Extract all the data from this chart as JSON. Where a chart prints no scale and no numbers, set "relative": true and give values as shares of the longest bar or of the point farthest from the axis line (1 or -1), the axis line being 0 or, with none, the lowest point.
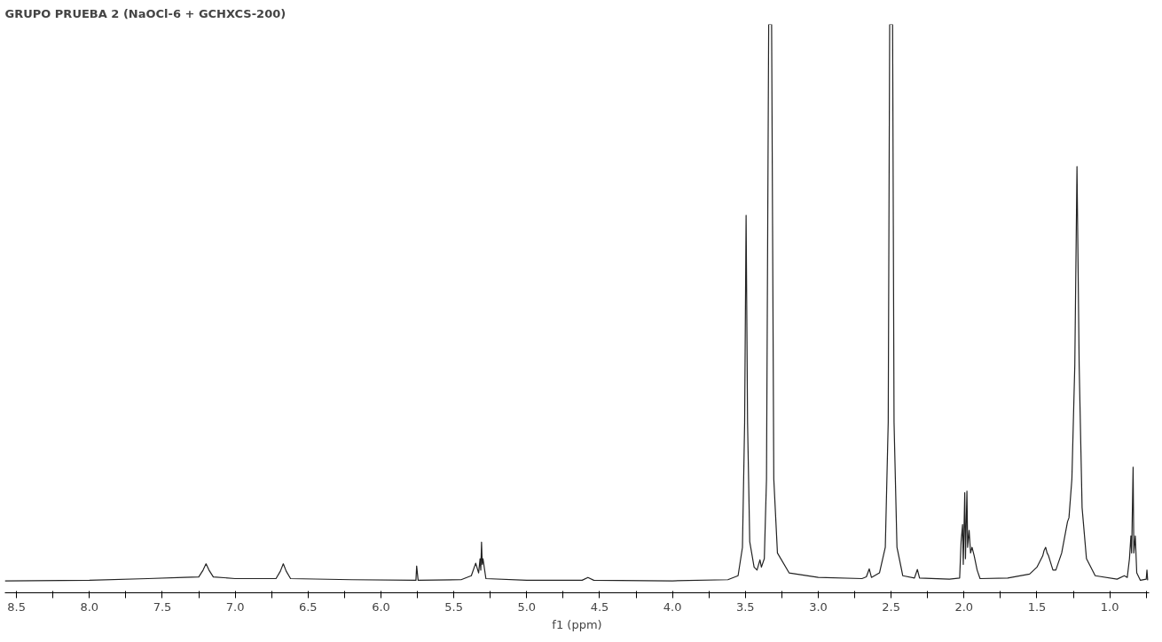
{
  "chart_data": {
    "type": "line",
    "title": "GRUPO PRUEBA 2 (NaOCl-6 + GCHXCS-200)",
    "xlabel": "f1 (ppm)",
    "relative": true,
    "grid": false,
    "marker": "none",
    "line_style": "solid",
    "xlim": [
      8.58,
      0.73
    ],
    "xticks": [
      {
        "value": 8.5,
        "label": "8.5"
      },
      {
        "value": 8.25,
        "label": null
      },
      {
        "value": 8.0,
        "label": "8.0"
      },
      {
        "value": 7.75,
        "label": null
      },
      {
        "value": 7.5,
        "label": "7.5"
      },
      {
        "value": 7.25,
        "label": null
      },
      {
        "value": 7.0,
        "label": "7.0"
      },
      {
        "value": 6.75,
        "label": null
      },
      {
        "value": 6.5,
        "label": "6.5"
      },
      {
        "value": 6.25,
        "label": null
      },
      {
        "value": 6.0,
        "label": "6.0"
      },
      {
        "value": 5.75,
        "label": null
      },
      {
        "value": 5.5,
        "label": "5.5"
      },
      {
        "value": 5.25,
        "label": null
      },
      {
        "value": 5.0,
        "label": "5.0"
      },
      {
        "value": 4.75,
        "label": null
      },
      {
        "value": 4.5,
        "label": "4.5"
      },
      {
        "value": 4.25,
        "label": null
      },
      {
        "value": 4.0,
        "label": "4.0"
      },
      {
        "value": 3.75,
        "label": null
      },
      {
        "value": 3.5,
        "label": "3.5"
      },
      {
        "value": 3.25,
        "label": null
      },
      {
        "value": 3.0,
        "label": "3.0"
      },
      {
        "value": 2.75,
        "label": null
      },
      {
        "value": 2.5,
        "label": "2.5"
      },
      {
        "value": 2.25,
        "label": null
      },
      {
        "value": 2.0,
        "label": "2.0"
      },
      {
        "value": 1.75,
        "label": null
      },
      {
        "value": 1.5,
        "label": "1.5"
      },
      {
        "value": 1.25,
        "label": null
      },
      {
        "value": 1.0,
        "label": "1.0"
      },
      {
        "value": 0.75,
        "label": null
      }
    ],
    "series": [
      {
        "color": "#222222",
        "x": [
          8.58,
          8.0,
          7.6,
          7.35,
          7.25,
          7.22,
          7.2,
          7.18,
          7.15,
          7.0,
          6.72,
          6.69,
          6.67,
          6.65,
          6.62,
          6.2,
          5.76,
          5.755,
          5.745,
          5.45,
          5.38,
          5.35,
          5.33,
          5.32,
          5.315,
          5.31,
          5.305,
          5.3,
          5.28,
          5.0,
          4.62,
          4.58,
          4.54,
          4.0,
          3.62,
          3.55,
          3.52,
          3.505,
          3.495,
          3.485,
          3.47,
          3.44,
          3.42,
          3.4,
          3.39,
          3.37,
          3.355,
          3.34,
          3.32,
          3.305,
          3.28,
          3.2,
          3.0,
          2.7,
          2.67,
          2.65,
          2.635,
          2.58,
          2.54,
          2.52,
          2.51,
          2.49,
          2.48,
          2.46,
          2.42,
          2.34,
          2.32,
          2.305,
          2.1,
          2.03,
          2.02,
          2.01,
          2.005,
          1.995,
          1.99,
          1.98,
          1.975,
          1.965,
          1.955,
          1.945,
          1.93,
          1.91,
          1.89,
          1.7,
          1.55,
          1.5,
          1.46,
          1.45,
          1.44,
          1.43,
          1.42,
          1.39,
          1.37,
          1.33,
          1.29,
          1.28,
          1.26,
          1.24,
          1.225,
          1.21,
          1.19,
          1.16,
          1.1,
          0.95,
          0.9,
          0.88,
          0.865,
          0.855,
          0.85,
          0.84,
          0.835,
          0.825,
          0.815,
          0.79,
          0.75,
          0.745,
          0.74
        ],
        "values": [
          0.021,
          0.022,
          0.025,
          0.027,
          0.028,
          0.04,
          0.051,
          0.04,
          0.028,
          0.025,
          0.025,
          0.038,
          0.051,
          0.038,
          0.025,
          0.023,
          0.022,
          0.047,
          0.022,
          0.023,
          0.03,
          0.052,
          0.035,
          0.06,
          0.04,
          0.089,
          0.05,
          0.06,
          0.025,
          0.022,
          0.022,
          0.027,
          0.022,
          0.021,
          0.023,
          0.03,
          0.08,
          0.3,
          0.664,
          0.3,
          0.09,
          0.045,
          0.04,
          0.058,
          0.045,
          0.06,
          0.2,
          1,
          1,
          0.2,
          0.07,
          0.035,
          0.027,
          0.025,
          0.028,
          0.042,
          0.027,
          0.035,
          0.08,
          0.3,
          1,
          1,
          0.3,
          0.08,
          0.03,
          0.026,
          0.041,
          0.026,
          0.024,
          0.026,
          0.09,
          0.12,
          0.05,
          0.176,
          0.06,
          0.179,
          0.08,
          0.11,
          0.07,
          0.08,
          0.065,
          0.04,
          0.025,
          0.026,
          0.033,
          0.045,
          0.065,
          0.075,
          0.08,
          0.07,
          0.065,
          0.04,
          0.04,
          0.07,
          0.125,
          0.132,
          0.2,
          0.4,
          0.75,
          0.4,
          0.15,
          0.06,
          0.03,
          0.024,
          0.03,
          0.027,
          0.06,
          0.1,
          0.07,
          0.221,
          0.07,
          0.1,
          0.035,
          0.022,
          0.024,
          0.04,
          0.022
        ]
      }
    ]
  }
}
